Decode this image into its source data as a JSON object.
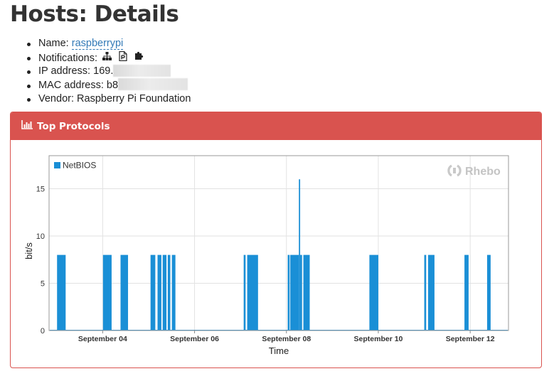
{
  "header": {
    "title": "Hosts: Details"
  },
  "details": {
    "name_label": "Name:",
    "name_value": "raspberrypi",
    "notifications_label": "Notifications:",
    "notification_icons": [
      "sitemap-icon",
      "file-icon",
      "puzzle-icon"
    ],
    "ip_label": "IP address:",
    "ip_value": "169.",
    "mac_label": "MAC address:",
    "mac_value": "b8",
    "vendor_label": "Vendor:",
    "vendor_value": "Raspberry Pi Foundation"
  },
  "panel": {
    "title": "Top Protocols",
    "icon": "bar-chart-icon",
    "accent_color": "#d9534f"
  },
  "chart_data": {
    "type": "bar",
    "watermark": "Rhebo",
    "xlabel": "Time",
    "ylabel": "bit/s",
    "ylim": [
      0,
      18.5
    ],
    "yticks": [
      0,
      5,
      10,
      15
    ],
    "xlim": [
      "2016-09-02T20:00",
      "2016-09-12T20:00"
    ],
    "xticks": [
      {
        "t": "2016-09-04T00:00",
        "label": "September 04"
      },
      {
        "t": "2016-09-06T00:00",
        "label": "September 06"
      },
      {
        "t": "2016-09-08T00:00",
        "label": "September 08"
      },
      {
        "t": "2016-09-10T00:00",
        "label": "September 10"
      },
      {
        "t": "2016-09-12T00:00",
        "label": "September 12"
      }
    ],
    "grid": true,
    "legend": "top-left",
    "series": [
      {
        "name": "NetBIOS",
        "color": "#1a8fd6",
        "bars": [
          {
            "start": "2016-09-03T00:10",
            "end": "2016-09-03T04:40",
            "value": 8
          },
          {
            "start": "2016-09-04T00:10",
            "end": "2016-09-04T04:40",
            "value": 8
          },
          {
            "start": "2016-09-04T09:20",
            "end": "2016-09-04T13:15",
            "value": 8
          },
          {
            "start": "2016-09-05T01:00",
            "end": "2016-09-05T03:30",
            "value": 8
          },
          {
            "start": "2016-09-05T04:40",
            "end": "2016-09-05T06:40",
            "value": 8
          },
          {
            "start": "2016-09-05T07:20",
            "end": "2016-09-05T09:20",
            "value": 8
          },
          {
            "start": "2016-09-05T10:00",
            "end": "2016-09-05T11:20",
            "value": 8
          },
          {
            "start": "2016-09-05T12:10",
            "end": "2016-09-05T14:00",
            "value": 8
          },
          {
            "start": "2016-09-07T01:40",
            "end": "2016-09-07T02:40",
            "value": 8
          },
          {
            "start": "2016-09-07T03:30",
            "end": "2016-09-07T09:10",
            "value": 8
          },
          {
            "start": "2016-09-08T00:40",
            "end": "2016-09-08T01:40",
            "value": 8
          },
          {
            "start": "2016-09-08T02:00",
            "end": "2016-09-08T06:30",
            "value": 8
          },
          {
            "start": "2016-09-08T06:30",
            "end": "2016-09-08T07:10",
            "value": 16
          },
          {
            "start": "2016-09-08T07:10",
            "end": "2016-09-08T08:10",
            "value": 8
          },
          {
            "start": "2016-09-08T08:50",
            "end": "2016-09-08T12:10",
            "value": 8
          },
          {
            "start": "2016-09-09T19:20",
            "end": "2016-09-10T00:00",
            "value": 8
          },
          {
            "start": "2016-09-11T00:00",
            "end": "2016-09-11T01:00",
            "value": 8
          },
          {
            "start": "2016-09-11T02:00",
            "end": "2016-09-11T05:20",
            "value": 8
          },
          {
            "start": "2016-09-11T21:00",
            "end": "2016-09-11T23:10",
            "value": 8
          },
          {
            "start": "2016-09-12T08:50",
            "end": "2016-09-12T10:40",
            "value": 8
          }
        ]
      }
    ]
  }
}
